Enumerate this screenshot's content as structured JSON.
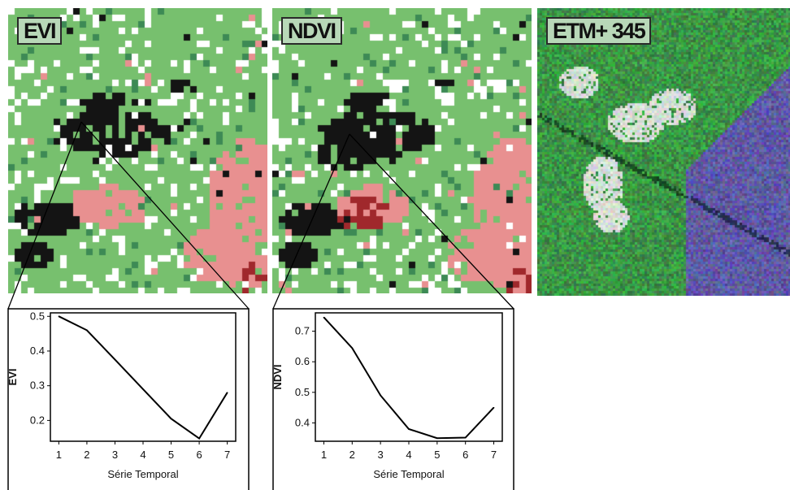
{
  "panels": {
    "evi_label": "EVI",
    "ndvi_label": "NDVI",
    "etm_label": "ETM+ 345"
  },
  "colors": {
    "green": "#77c06e",
    "dark_green": "#3d8a55",
    "black": "#141414",
    "pink": "#e89090",
    "dark_red": "#a0282c",
    "white": "#ffffff",
    "label_bg": "#b8d8b8"
  },
  "chart_data": [
    {
      "type": "line",
      "x": [
        1,
        2,
        3,
        4,
        5,
        6,
        7
      ],
      "values": [
        0.5,
        0.46,
        0.375,
        0.29,
        0.205,
        0.148,
        0.28
      ],
      "xlabel": "Série Temporal",
      "ylabel": "EVI",
      "xticks": [
        "1",
        "2",
        "3",
        "4",
        "5",
        "6",
        "7"
      ],
      "yticks": [
        "0.2",
        "0.3",
        "0.4",
        "0.5"
      ],
      "xlim": [
        0.7,
        7.3
      ],
      "ylim": [
        0.14,
        0.51
      ]
    },
    {
      "type": "line",
      "x": [
        1,
        2,
        3,
        4,
        5,
        6,
        7
      ],
      "values": [
        0.745,
        0.645,
        0.49,
        0.38,
        0.35,
        0.352,
        0.45
      ],
      "xlabel": "Série Temporal",
      "ylabel": "NDVI",
      "xticks": [
        "1",
        "2",
        "3",
        "4",
        "5",
        "6",
        "7"
      ],
      "yticks": [
        "0.4",
        "0.5",
        "0.6",
        "0.7"
      ],
      "xlim": [
        0.7,
        7.3
      ],
      "ylim": [
        0.34,
        0.76
      ]
    }
  ]
}
